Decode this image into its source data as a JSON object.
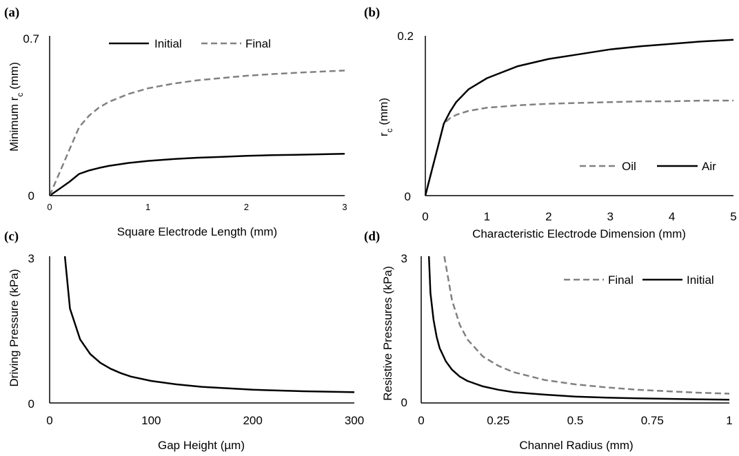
{
  "chart_data": [
    {
      "panel_label": "(a)",
      "type": "line",
      "xlabel": "Square Electrode Length (mm)",
      "ylabel": "Minimum r",
      "ylabel_sub": "c",
      "ylabel_unit": " (mm)",
      "xlim": [
        0,
        3
      ],
      "ylim": [
        0,
        0.7
      ],
      "x_ticks": [
        0,
        1,
        2,
        3
      ],
      "x_tick_labels": [
        "0",
        "1",
        "2",
        "3"
      ],
      "y_ticks": [
        0,
        0.7
      ],
      "y_tick_labels": [
        "0",
        "0.7"
      ],
      "grid": false,
      "legend_position": "top",
      "series": [
        {
          "name": "Initial",
          "style": "solid",
          "color": "#000000",
          "x": [
            0,
            0.1,
            0.2,
            0.3,
            0.4,
            0.5,
            0.6,
            0.8,
            1.0,
            1.25,
            1.5,
            1.75,
            2.0,
            2.25,
            2.5,
            2.75,
            3.0
          ],
          "y": [
            0,
            0.03,
            0.06,
            0.095,
            0.11,
            0.121,
            0.13,
            0.143,
            0.152,
            0.16,
            0.166,
            0.17,
            0.174,
            0.177,
            0.179,
            0.181,
            0.183
          ]
        },
        {
          "name": "Final",
          "style": "dashed",
          "color": "#808080",
          "x": [
            0,
            0.1,
            0.2,
            0.3,
            0.4,
            0.5,
            0.6,
            0.8,
            1.0,
            1.25,
            1.5,
            1.75,
            2.0,
            2.25,
            2.5,
            2.75,
            3.0
          ],
          "y": [
            0,
            0.1,
            0.2,
            0.3,
            0.35,
            0.385,
            0.41,
            0.445,
            0.47,
            0.49,
            0.505,
            0.515,
            0.525,
            0.532,
            0.538,
            0.543,
            0.548
          ]
        }
      ]
    },
    {
      "panel_label": "(b)",
      "type": "line",
      "xlabel": "Characteristic Electrode Dimension (mm)",
      "ylabel": "r",
      "ylabel_sub": "c",
      "ylabel_unit": " (mm)",
      "xlim": [
        0,
        5
      ],
      "ylim": [
        0,
        0.2
      ],
      "x_ticks": [
        0,
        1,
        2,
        3,
        4,
        5
      ],
      "x_tick_labels": [
        "0",
        "1",
        "2",
        "3",
        "4",
        "5"
      ],
      "y_ticks": [
        0,
        0.2
      ],
      "y_tick_labels": [
        "0",
        "0.2"
      ],
      "grid": false,
      "legend_position": "bottom-right",
      "series": [
        {
          "name": "Oil",
          "style": "dashed",
          "color": "#808080",
          "x": [
            0,
            0.1,
            0.2,
            0.3,
            0.4,
            0.5,
            0.7,
            1.0,
            1.5,
            2.0,
            2.5,
            3.0,
            3.5,
            4.0,
            4.5,
            5.0
          ],
          "y": [
            0,
            0.03,
            0.06,
            0.09,
            0.097,
            0.101,
            0.106,
            0.11,
            0.113,
            0.115,
            0.116,
            0.117,
            0.118,
            0.118,
            0.119,
            0.119
          ]
        },
        {
          "name": "Air",
          "style": "solid",
          "color": "#000000",
          "x": [
            0,
            0.1,
            0.2,
            0.3,
            0.4,
            0.5,
            0.7,
            1.0,
            1.5,
            2.0,
            2.5,
            3.0,
            3.5,
            4.0,
            4.5,
            5.0
          ],
          "y": [
            0,
            0.03,
            0.06,
            0.09,
            0.105,
            0.117,
            0.133,
            0.147,
            0.162,
            0.171,
            0.177,
            0.183,
            0.187,
            0.19,
            0.193,
            0.195
          ]
        }
      ]
    },
    {
      "panel_label": "(c)",
      "type": "line",
      "xlabel": "Gap Height (µm)",
      "ylabel": "Driving Pressure (kPa)",
      "ylabel_sub": "",
      "ylabel_unit": "",
      "xlim": [
        0,
        300
      ],
      "ylim": [
        0,
        3
      ],
      "x_ticks": [
        0,
        100,
        200,
        300
      ],
      "x_tick_labels": [
        "0",
        "100",
        "200",
        "300"
      ],
      "y_ticks": [
        0,
        3
      ],
      "y_tick_labels": [
        "0",
        "3"
      ],
      "grid": false,
      "legend_position": "none",
      "series": [
        {
          "name": "",
          "style": "solid",
          "color": "#000000",
          "x": [
            15,
            20,
            30,
            40,
            50,
            60,
            70,
            80,
            100,
            125,
            150,
            200,
            250,
            300
          ],
          "y": [
            3.0,
            1.93,
            1.3,
            1.0,
            0.82,
            0.7,
            0.61,
            0.54,
            0.45,
            0.38,
            0.33,
            0.27,
            0.24,
            0.22
          ]
        }
      ]
    },
    {
      "panel_label": "(d)",
      "type": "line",
      "xlabel": "Channel Radius (mm)",
      "ylabel": "Resistive Pressures (kPa)",
      "ylabel_sub": "",
      "ylabel_unit": "",
      "xlim": [
        0,
        1
      ],
      "ylim": [
        0,
        3
      ],
      "x_ticks": [
        0,
        0.25,
        0.5,
        0.75,
        1
      ],
      "x_tick_labels": [
        "0",
        "0.25",
        "0.5",
        "0.75",
        "1"
      ],
      "y_ticks": [
        0,
        3
      ],
      "y_tick_labels": [
        "0",
        "3"
      ],
      "grid": false,
      "legend_position": "top-right",
      "series": [
        {
          "name": "Final",
          "style": "dashed",
          "color": "#808080",
          "x": [
            0.075,
            0.1,
            0.125,
            0.15,
            0.2,
            0.25,
            0.3,
            0.4,
            0.5,
            0.6,
            0.7,
            0.8,
            0.9,
            1.0
          ],
          "y": [
            3.0,
            2.1,
            1.6,
            1.3,
            0.95,
            0.76,
            0.63,
            0.47,
            0.38,
            0.32,
            0.27,
            0.24,
            0.21,
            0.19
          ]
        },
        {
          "name": "Initial",
          "style": "solid",
          "color": "#000000",
          "x": [
            0.025,
            0.03,
            0.04,
            0.05,
            0.06,
            0.08,
            0.1,
            0.125,
            0.15,
            0.2,
            0.25,
            0.3,
            0.4,
            0.5,
            0.6,
            0.7,
            0.8,
            0.9,
            1.0
          ],
          "y": [
            3.0,
            2.25,
            1.7,
            1.35,
            1.12,
            0.85,
            0.68,
            0.54,
            0.45,
            0.34,
            0.27,
            0.22,
            0.17,
            0.13,
            0.11,
            0.095,
            0.085,
            0.075,
            0.068
          ]
        }
      ]
    }
  ]
}
